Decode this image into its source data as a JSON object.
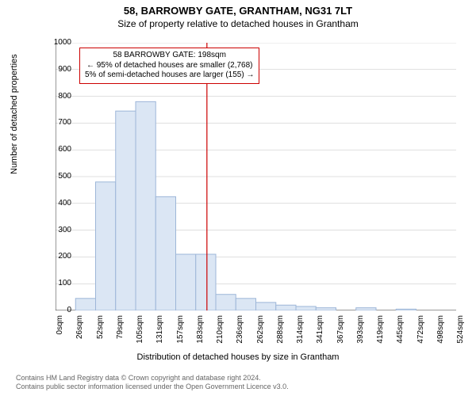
{
  "titles": {
    "line1": "58, BARROWBY GATE, GRANTHAM, NG31 7LT",
    "line2": "Size of property relative to detached houses in Grantham"
  },
  "axes": {
    "ylabel": "Number of detached properties",
    "xlabel": "Distribution of detached houses by size in Grantham",
    "ylim": [
      0,
      1000
    ],
    "ytick_step": 100,
    "xtick_labels": [
      "0sqm",
      "26sqm",
      "52sqm",
      "79sqm",
      "105sqm",
      "131sqm",
      "157sqm",
      "183sqm",
      "210sqm",
      "236sqm",
      "262sqm",
      "288sqm",
      "314sqm",
      "341sqm",
      "367sqm",
      "393sqm",
      "419sqm",
      "445sqm",
      "472sqm",
      "498sqm",
      "524sqm"
    ]
  },
  "histogram": {
    "type": "histogram",
    "bar_fill": "#dbe6f4",
    "bar_stroke": "#9db6d8",
    "values": [
      0,
      45,
      480,
      745,
      780,
      425,
      210,
      210,
      60,
      45,
      30,
      20,
      15,
      10,
      0,
      10,
      0,
      5,
      0,
      0
    ]
  },
  "marker": {
    "x_value": 198,
    "x_max": 524,
    "line_color": "#cc0000"
  },
  "annotation": {
    "border_color": "#cc0000",
    "line1": "58 BARROWBY GATE: 198sqm",
    "line2": "← 95% of detached houses are smaller (2,768)",
    "line3": "5% of semi-detached houses are larger (155) →"
  },
  "chart_style": {
    "grid_color": "#bfbfbf",
    "tick_color": "#333333",
    "background": "#ffffff",
    "font_family": "Arial",
    "tick_fontsize": 10,
    "label_fontsize": 11,
    "title_fontsize_1": 13,
    "title_fontsize_2": 12
  },
  "footer": {
    "line1": "Contains HM Land Registry data © Crown copyright and database right 2024.",
    "line2": "Contains public sector information licensed under the Open Government Licence v3.0."
  }
}
